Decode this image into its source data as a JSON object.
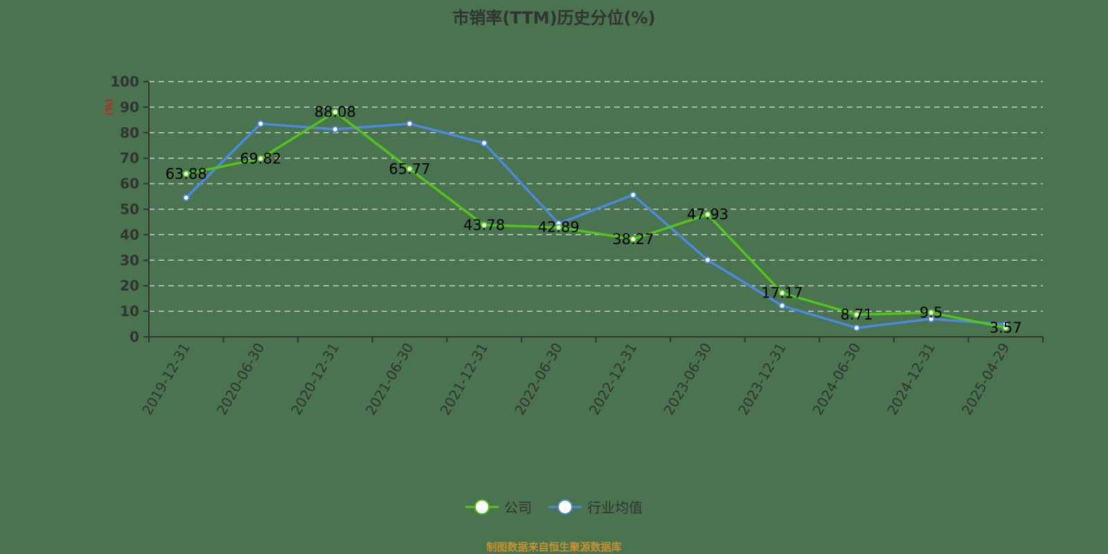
{
  "title": "市销率(TTM)历史分位(%)",
  "source_note": "制图数据来自恒生聚源数据库",
  "colors": {
    "company": "#52c41a",
    "industry": "#4e88e0",
    "axis": "#333333",
    "grid": "#cccccc",
    "unit_label": "#ff0000",
    "source": "#c8912e"
  },
  "legend": [
    {
      "label": "公司",
      "color": "#52c41a"
    },
    {
      "label": "行业均值",
      "color": "#4e88e0"
    }
  ],
  "chart_data": {
    "type": "line",
    "title": "市销率(TTM)历史分位(%)",
    "xlabel": "",
    "ylabel": "(%)",
    "ylim": [
      0,
      100
    ],
    "yticks": [
      0,
      10,
      20,
      30,
      40,
      50,
      60,
      70,
      80,
      90,
      100
    ],
    "grid": "horizontal dashed",
    "legend_position": "bottom",
    "categories": [
      "2019-12-31",
      "2020-06-30",
      "2020-12-31",
      "2021-06-30",
      "2021-12-31",
      "2022-06-30",
      "2022-12-31",
      "2023-06-30",
      "2023-12-31",
      "2024-06-30",
      "2024-12-31",
      "2025-04-29"
    ],
    "series": [
      {
        "name": "公司",
        "color": "#52c41a",
        "values": [
          63.88,
          69.82,
          88.08,
          65.77,
          43.78,
          42.89,
          38.27,
          47.93,
          17.17,
          8.71,
          9.5,
          3.57
        ],
        "labels_shown": true
      },
      {
        "name": "行业均值",
        "color": "#4e88e0",
        "values": [
          54.5,
          83.5,
          81.3,
          83.5,
          75.9,
          44.4,
          55.6,
          30.1,
          12.2,
          3.5,
          7.0,
          4.9
        ],
        "labels_shown": false
      }
    ]
  }
}
